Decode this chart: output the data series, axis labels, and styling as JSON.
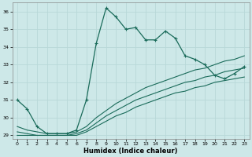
{
  "xlabel": "Humidex (Indice chaleur)",
  "ylabel": "",
  "background_color": "#cde8e8",
  "grid_color": "#b8d8d8",
  "line_color": "#1a6b5a",
  "xlim": [
    -0.5,
    23.5
  ],
  "ylim": [
    28.8,
    36.5
  ],
  "yticks": [
    29,
    30,
    31,
    32,
    33,
    34,
    35,
    36
  ],
  "xticks": [
    0,
    1,
    2,
    3,
    4,
    5,
    6,
    7,
    8,
    9,
    10,
    11,
    12,
    13,
    14,
    15,
    16,
    17,
    18,
    19,
    20,
    21,
    22,
    23
  ],
  "series1_x": [
    0,
    1,
    2,
    3,
    4,
    5,
    6,
    7,
    8,
    9,
    10,
    11,
    12,
    13,
    14,
    15,
    16,
    17,
    18,
    19,
    20,
    21,
    22,
    23
  ],
  "series1_y": [
    31.0,
    30.5,
    29.5,
    29.1,
    29.1,
    29.1,
    29.3,
    31.0,
    34.2,
    36.2,
    35.7,
    35.0,
    35.1,
    34.4,
    34.4,
    34.9,
    34.5,
    33.5,
    33.3,
    33.0,
    32.4,
    32.2,
    32.5,
    32.9
  ],
  "series2_x": [
    0,
    1,
    2,
    3,
    4,
    5,
    6,
    7,
    8,
    9,
    10,
    11,
    12,
    13,
    14,
    15,
    16,
    17,
    18,
    19,
    20,
    21,
    22,
    23
  ],
  "series2_y": [
    29.5,
    29.3,
    29.2,
    29.1,
    29.1,
    29.1,
    29.2,
    29.5,
    30.0,
    30.4,
    30.8,
    31.1,
    31.4,
    31.7,
    31.9,
    32.1,
    32.3,
    32.5,
    32.7,
    32.8,
    33.0,
    33.2,
    33.3,
    33.5
  ],
  "series3_x": [
    0,
    1,
    2,
    3,
    4,
    5,
    6,
    7,
    8,
    9,
    10,
    11,
    12,
    13,
    14,
    15,
    16,
    17,
    18,
    19,
    20,
    21,
    22,
    23
  ],
  "series3_y": [
    29.2,
    29.1,
    29.0,
    29.0,
    29.0,
    29.0,
    29.1,
    29.3,
    29.7,
    30.1,
    30.4,
    30.7,
    31.0,
    31.2,
    31.4,
    31.6,
    31.8,
    32.0,
    32.1,
    32.3,
    32.4,
    32.6,
    32.7,
    32.8
  ],
  "series4_x": [
    0,
    1,
    2,
    3,
    4,
    5,
    6,
    7,
    8,
    9,
    10,
    11,
    12,
    13,
    14,
    15,
    16,
    17,
    18,
    19,
    20,
    21,
    22,
    23
  ],
  "series4_y": [
    29.0,
    29.0,
    29.0,
    29.0,
    29.0,
    29.0,
    29.0,
    29.2,
    29.5,
    29.8,
    30.1,
    30.3,
    30.6,
    30.8,
    31.0,
    31.2,
    31.4,
    31.5,
    31.7,
    31.8,
    32.0,
    32.1,
    32.2,
    32.3
  ]
}
